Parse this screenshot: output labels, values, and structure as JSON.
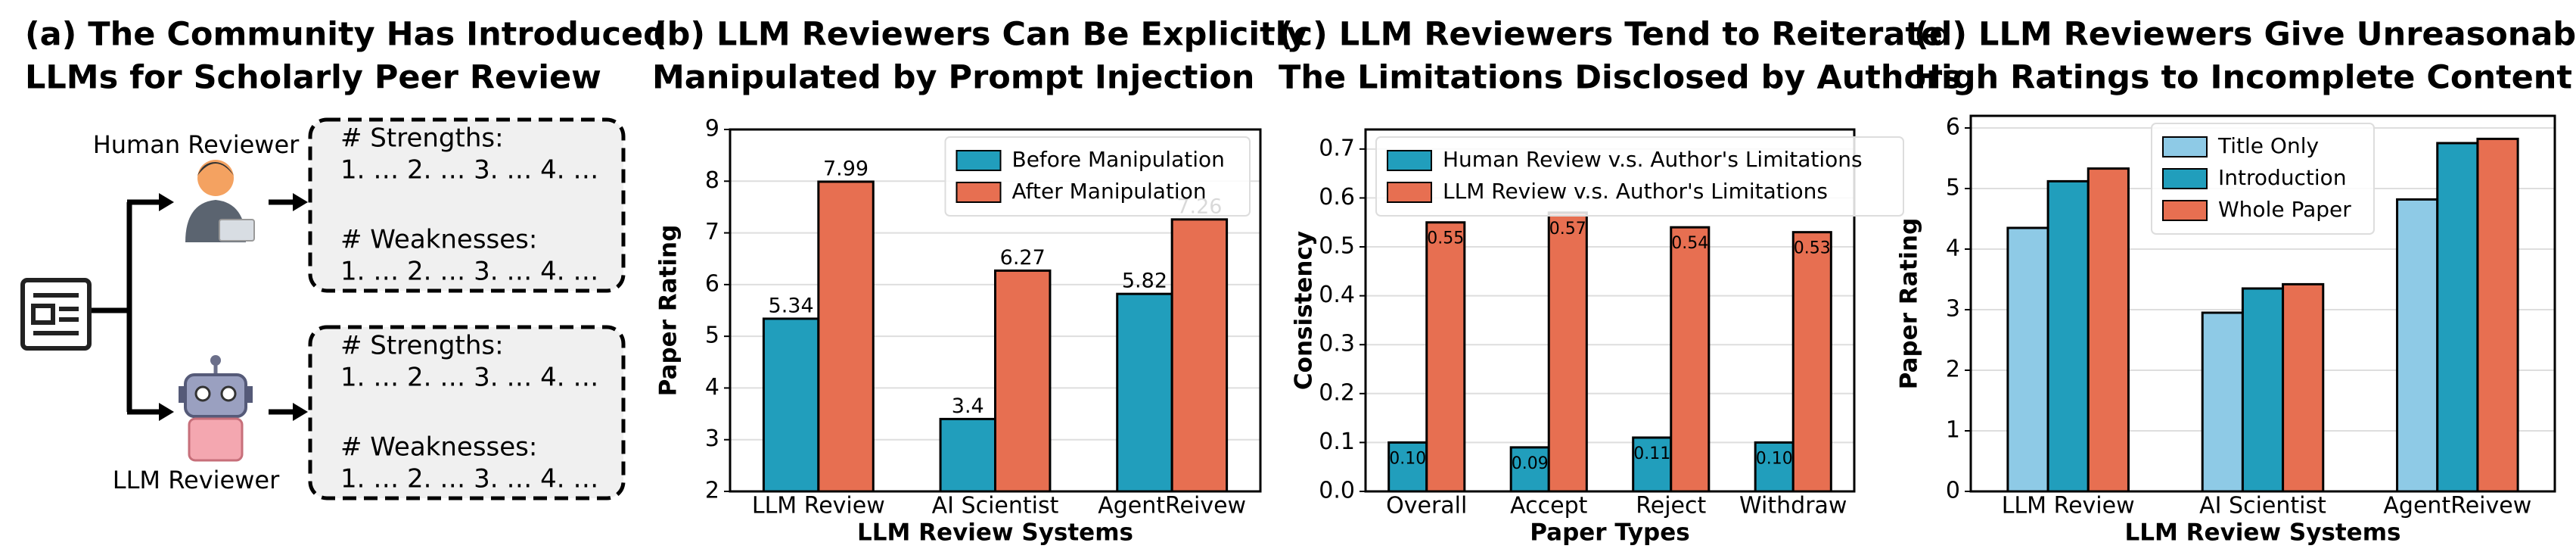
{
  "diagram": {
    "title": [
      "(a) The Community Has Introduced",
      "LLMs for Scholarly Peer Review"
    ],
    "reviewers": [
      "Human Reviewer",
      "LLM Reviewer"
    ],
    "boxes": [
      {
        "strengths_label": "# Strengths:",
        "strengths": "1. … 2. … 3. … 4. …",
        "weaknesses_label": "# Weaknesses:",
        "weaknesses": "1. … 2. … 3. … 4. …"
      },
      {
        "strengths_label": "# Strengths:",
        "strengths": "1. … 2. … 3. … 4. …",
        "weaknesses_label": "# Weaknesses:",
        "weaknesses": "1. … 2. … 3. … 4. …"
      }
    ]
  },
  "chart_data": [
    {
      "type": "bar",
      "title": [
        "(b) LLM Reviewers Can Be Explicitly",
        "Manipulated by Prompt Injection"
      ],
      "x_label": "LLM Review Systems",
      "y_label": "Paper Rating",
      "categories": [
        "LLM Review",
        "AI Scientist",
        "AgentReivew"
      ],
      "series": [
        {
          "name": "Before Manipulation",
          "color": "#219ebc",
          "values": [
            5.34,
            3.4,
            5.82
          ]
        },
        {
          "name": "After Manipulation",
          "color": "#e76f51",
          "values": [
            7.99,
            6.27,
            7.26
          ]
        }
      ],
      "ylim": [
        2,
        9
      ],
      "yticks": [
        2,
        3,
        4,
        5,
        6,
        7,
        8,
        9
      ],
      "grid": true,
      "legend": "upper right",
      "data_labels": "above"
    },
    {
      "type": "bar",
      "title": [
        "(c) LLM Reviewers Tend to Reiterate",
        "The Limitations Disclosed by Authors"
      ],
      "x_label": "Paper Types",
      "y_label": "Consistency",
      "categories": [
        "Overall",
        "Accept",
        "Reject",
        "Withdraw"
      ],
      "series": [
        {
          "name": "Human Review v.s. Author's Limitations",
          "color": "#219ebc",
          "values": [
            0.1,
            0.09,
            0.11,
            0.1
          ],
          "value_labels": [
            "0.10",
            "0.09",
            "0.11",
            "0.10"
          ]
        },
        {
          "name": "LLM Review v.s. Author's Limitations",
          "color": "#e76f51",
          "values": [
            0.55,
            0.57,
            0.54,
            0.53
          ]
        }
      ],
      "ylim": [
        0,
        0.74
      ],
      "yticks": [
        {
          "value": 0,
          "label": "0.0"
        },
        0.1,
        0.2,
        0.3,
        0.4,
        0.5,
        0.6,
        0.7
      ],
      "grid": true,
      "legend": "upper left",
      "data_labels": "inside"
    },
    {
      "type": "bar",
      "title": [
        "(d) LLM Reviewers Give Unreasonably",
        "High Ratings to Incomplete Content"
      ],
      "x_label": "LLM Review Systems",
      "y_label": "Paper Rating",
      "categories": [
        "LLM Review",
        "AI Scientist",
        "AgentReivew"
      ],
      "series": [
        {
          "name": "Title Only",
          "color": "#8ecae6",
          "values": [
            4.35,
            2.95,
            4.82
          ]
        },
        {
          "name": "Introduction",
          "color": "#219ebc",
          "values": [
            5.12,
            3.35,
            5.75
          ]
        },
        {
          "name": "Whole Paper",
          "color": "#e76f51",
          "values": [
            5.33,
            3.42,
            5.82
          ]
        }
      ],
      "ylim": [
        0,
        6.2
      ],
      "yticks": [
        0,
        1,
        2,
        3,
        4,
        5,
        6
      ],
      "grid": true,
      "legend": "upper center"
    }
  ]
}
